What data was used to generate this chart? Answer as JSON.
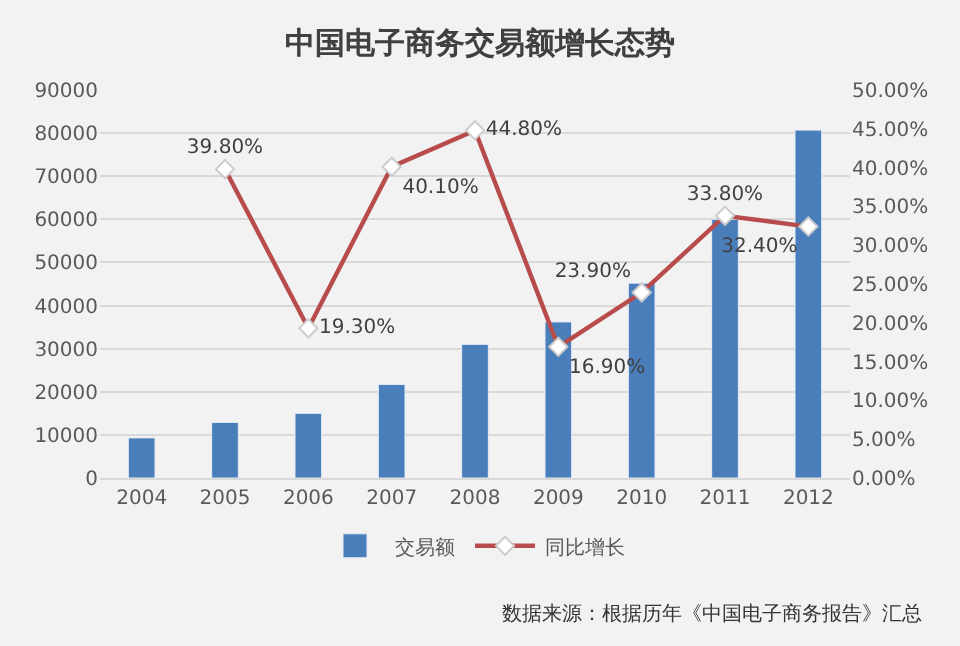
{
  "chart_data": {
    "type": "bar",
    "title": "中国电子商务交易额增长态势",
    "categories": [
      "2004",
      "2005",
      "2006",
      "2007",
      "2008",
      "2009",
      "2010",
      "2011",
      "2012"
    ],
    "series": [
      {
        "name": "交易额",
        "color": "#4a7ebb",
        "values": [
          9300,
          12900,
          15000,
          21700,
          31000,
          36200,
          45200,
          60000,
          80700
        ]
      },
      {
        "name": "同比增长",
        "type": "line",
        "axis": "y2",
        "color": "#b84c4c",
        "marker": "diamond",
        "line_style": "solid",
        "values": [
          null,
          39.8,
          19.3,
          40.1,
          44.8,
          16.9,
          23.9,
          33.8,
          32.4
        ],
        "value_labels": [
          null,
          "39.80%",
          "19.30%",
          "40.10%",
          "44.80%",
          "16.90%",
          "23.90%",
          "33.80%",
          "32.40%"
        ]
      }
    ],
    "ylim": [
      0,
      90000
    ],
    "yticks": [
      0,
      10000,
      20000,
      30000,
      40000,
      50000,
      60000,
      70000,
      80000,
      90000
    ],
    "y2lim": [
      0,
      50
    ],
    "y2ticks": [
      {
        "value": 0,
        "label": "0.00%"
      },
      {
        "value": 5,
        "label": "5.00%"
      },
      {
        "value": 10,
        "label": "10.00%"
      },
      {
        "value": 15,
        "label": "15.00%"
      },
      {
        "value": 20,
        "label": "20.00%"
      },
      {
        "value": 25,
        "label": "25.00%"
      },
      {
        "value": 30,
        "label": "30.00%"
      },
      {
        "value": 35,
        "label": "35.00%"
      },
      {
        "value": 40,
        "label": "40.00%"
      },
      {
        "value": 45,
        "label": "45.00%"
      },
      {
        "value": 50,
        "label": "50.00%"
      }
    ],
    "grid": "y",
    "legend": "bottom",
    "annotations": [
      "数据来源：根据历年《中国电子商务报告》汇总"
    ]
  }
}
